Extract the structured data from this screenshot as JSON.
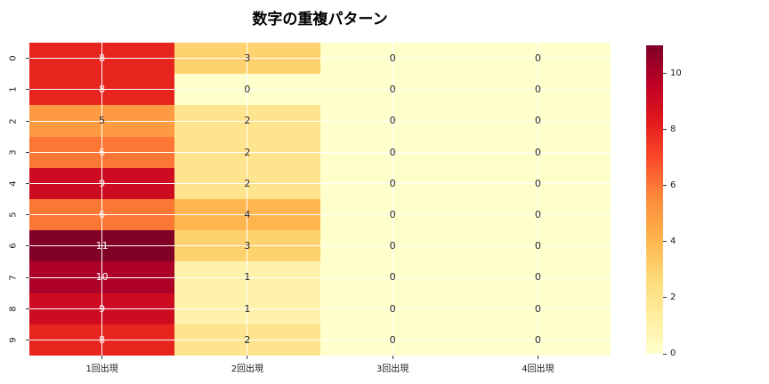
{
  "title": "数字の重複パターン",
  "chart_data": {
    "type": "heatmap",
    "title": "数字の重複パターン",
    "row_labels": [
      "0",
      "1",
      "2",
      "3",
      "4",
      "5",
      "6",
      "7",
      "8",
      "9"
    ],
    "col_labels": [
      "1回出現",
      "2回出現",
      "3回出現",
      "4回出現"
    ],
    "matrix": [
      [
        8,
        3,
        0,
        0
      ],
      [
        8,
        0,
        0,
        0
      ],
      [
        5,
        2,
        0,
        0
      ],
      [
        6,
        2,
        0,
        0
      ],
      [
        9,
        2,
        0,
        0
      ],
      [
        6,
        4,
        0,
        0
      ],
      [
        11,
        3,
        0,
        0
      ],
      [
        10,
        1,
        0,
        0
      ],
      [
        9,
        1,
        0,
        0
      ],
      [
        8,
        2,
        0,
        0
      ]
    ],
    "vmin": 0,
    "vmax": 11,
    "colormap": "YlOrRd",
    "colormap_stops": [
      "#ffffcc",
      "#ffeda0",
      "#fed976",
      "#feb24c",
      "#fd8d3c",
      "#fc4e2a",
      "#e31a1c",
      "#bd0026",
      "#800026"
    ],
    "value_colors": {
      "0": {
        "bg": "#ffffcc",
        "fg": "#262626"
      },
      "1": {
        "bg": "#fff2ac",
        "fg": "#262626"
      },
      "2": {
        "bg": "#fee48d",
        "fg": "#262626"
      },
      "3": {
        "bg": "#fed26e",
        "fg": "#262626"
      },
      "4": {
        "bg": "#feb550",
        "fg": "#262626"
      },
      "5": {
        "bg": "#fd9a42",
        "fg": "#262626"
      },
      "6": {
        "bg": "#fc7635",
        "fg": "#ffffff"
      },
      "8": {
        "bg": "#e8241f",
        "fg": "#ffffff"
      },
      "9": {
        "bg": "#ce0c21",
        "fg": "#ffffff"
      },
      "10": {
        "bg": "#ac0026",
        "fg": "#ffffff"
      },
      "11": {
        "bg": "#800026",
        "fg": "#ffffff"
      }
    },
    "grid_color": "#ffffff",
    "colorbar_ticks": [
      "0",
      "2",
      "4",
      "6",
      "8",
      "10"
    ],
    "colorbar_tick_values": [
      0,
      2,
      4,
      6,
      8,
      10
    ],
    "legend_position": "right",
    "grid": true
  }
}
